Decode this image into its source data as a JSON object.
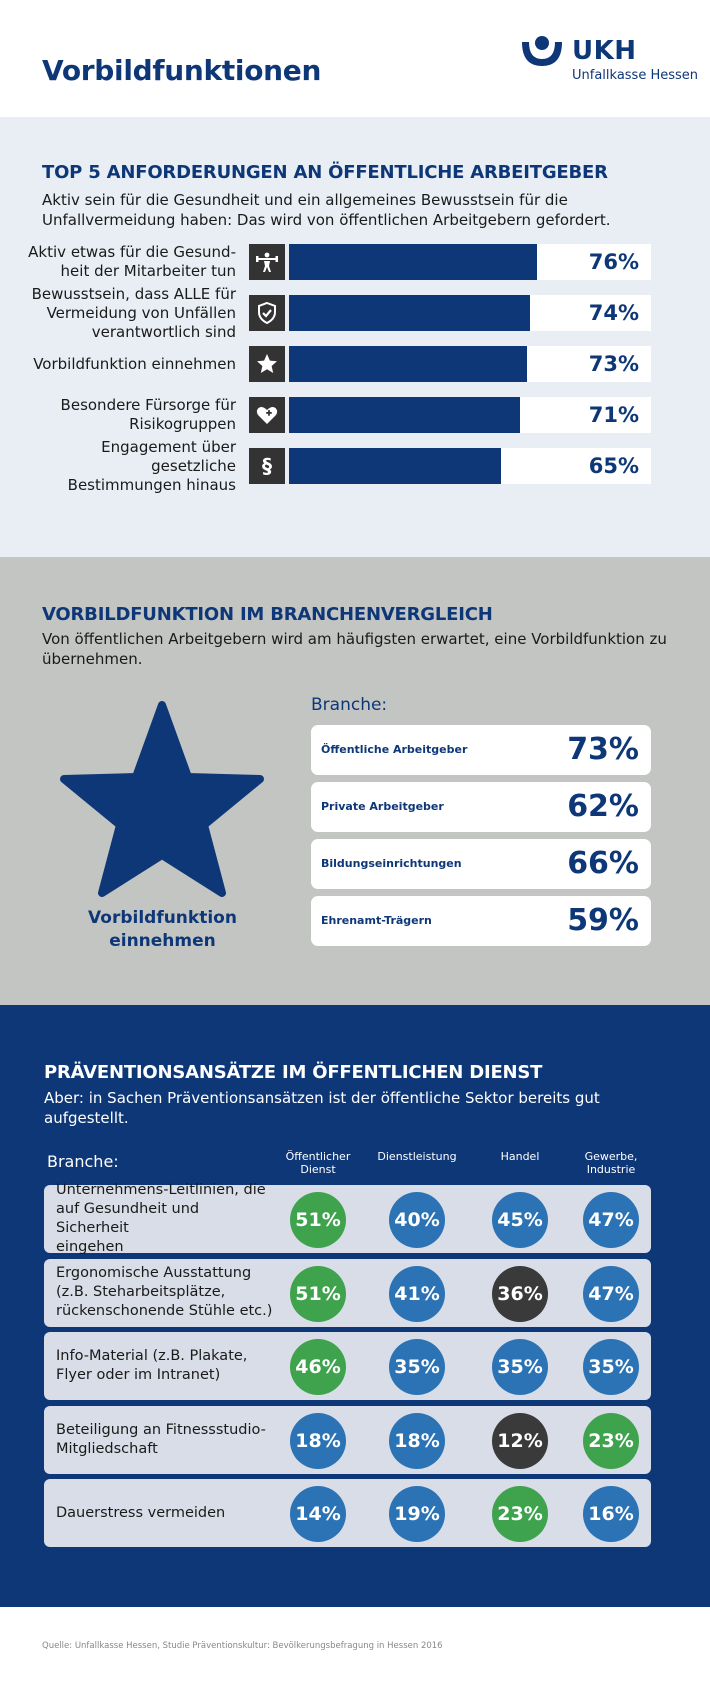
{
  "header": {
    "title": "Vorbildfunktionen",
    "logo_text": "UKH",
    "logo_sub": "Unfallkasse Hessen",
    "logo_color": "#0e3778"
  },
  "section1": {
    "title": "TOP 5 ANFORDERUNGEN AN ÖFFENTLICHE ARBEITGEBER",
    "subtitle": "Aktiv sein für die Gesundheit und ein allgemeines Bewusstsein für die Unfallvermeidung haben: Das wird von öffentlichen Arbeitgebern gefordert.",
    "icons": [
      "weightlifter-icon",
      "shield-check-icon",
      "star-icon",
      "heart-plus-icon",
      "paragraph-icon"
    ]
  },
  "section2": {
    "title": "VORBILDFUNKTION IM BRANCHENVERGLEICH",
    "subtitle": "Von öffentlichen Arbeitgebern wird am häufigsten erwartet, eine Vorbildfunktion zu übernehmen.",
    "star_caption_line1": "Vorbildfunktion",
    "star_caption_line2": "einnehmen",
    "branche_label": "Branche:"
  },
  "section3": {
    "title": "PRÄVENTIONSANSÄTZE IM ÖFFENTLICHEN DIENST",
    "subtitle": "Aber: in Sachen Präventionsansätzen ist der öffentliche Sektor bereits gut aufgestellt.",
    "branche_label": "Branche:",
    "colors": {
      "blue": "#2b73b5",
      "green": "#3fa34d",
      "dark": "#3a3a3a"
    }
  },
  "footer": {
    "source": "Quelle: Unfallkasse Hessen, Studie Präventionskultur: Bevölkerungsbefragung in Hessen 2016"
  },
  "chart_data": [
    {
      "type": "bar",
      "orientation": "horizontal",
      "title": "TOP 5 ANFORDERUNGEN AN ÖFFENTLICHE ARBEITGEBER",
      "categories": [
        [
          "Aktiv etwas für die Gesund-",
          "heit der Mitarbeiter tun"
        ],
        [
          "Bewusstsein, dass ALLE für",
          "Vermeidung von Unfällen",
          "verantwortlich sind"
        ],
        [
          "Vorbildfunktion einnehmen"
        ],
        [
          "Besondere Fürsorge für",
          "Risikogruppen"
        ],
        [
          "Engagement über gesetzliche",
          "Bestimmungen hinaus"
        ]
      ],
      "values": [
        76,
        74,
        73,
        71,
        65
      ],
      "labels": [
        "76%",
        "74%",
        "73%",
        "71%",
        "65%"
      ],
      "xlim": [
        0,
        100
      ],
      "color": "#0e3778"
    },
    {
      "type": "table",
      "title": "VORBILDFUNKTION IM BRANCHENVERGLEICH",
      "categories": [
        "Öffentliche Arbeitgeber",
        "Private Arbeitgeber",
        "Bildungseinrichtungen",
        "Ehrenamt-Trägern"
      ],
      "values": [
        73,
        62,
        66,
        59
      ],
      "labels": [
        "73%",
        "62%",
        "66%",
        "59%"
      ]
    },
    {
      "type": "table",
      "title": "PRÄVENTIONSANSÄTZE IM ÖFFENTLICHEN DIENST",
      "columns": [
        [
          "Öffentlicher",
          "Dienst"
        ],
        [
          "Dienstleistung"
        ],
        [
          "Handel"
        ],
        [
          "Gewerbe,",
          "Industrie"
        ]
      ],
      "rows": [
        {
          "label": [
            "Unternehmens-Leitlinien, die",
            "auf Gesundheit und Sicherheit",
            "eingehen"
          ],
          "values": [
            51,
            40,
            45,
            47
          ],
          "labels": [
            "51%",
            "40%",
            "45%",
            "47%"
          ],
          "colors": [
            "green",
            "blue",
            "blue",
            "blue"
          ]
        },
        {
          "label": [
            "Ergonomische Ausstattung",
            "(z.B. Steharbeitsplätze,",
            "rückenschonende Stühle etc.)"
          ],
          "values": [
            51,
            41,
            36,
            47
          ],
          "labels": [
            "51%",
            "41%",
            "36%",
            "47%"
          ],
          "colors": [
            "green",
            "blue",
            "dark",
            "blue"
          ]
        },
        {
          "label": [
            "Info-Material (z.B. Plakate,",
            "Flyer oder im Intranet)"
          ],
          "values": [
            46,
            35,
            35,
            35
          ],
          "labels": [
            "46%",
            "35%",
            "35%",
            "35%"
          ],
          "colors": [
            "green",
            "blue",
            "blue",
            "blue"
          ]
        },
        {
          "label": [
            "Beteiligung an Fitnessstudio-",
            "Mitgliedschaft"
          ],
          "values": [
            18,
            18,
            12,
            23
          ],
          "labels": [
            "18%",
            "18%",
            "12%",
            "23%"
          ],
          "colors": [
            "blue",
            "blue",
            "dark",
            "green"
          ]
        },
        {
          "label": [
            "Dauerstress vermeiden"
          ],
          "values": [
            14,
            19,
            23,
            16
          ],
          "labels": [
            "14%",
            "19%",
            "23%",
            "16%"
          ],
          "colors": [
            "blue",
            "blue",
            "green",
            "blue"
          ]
        }
      ]
    }
  ]
}
